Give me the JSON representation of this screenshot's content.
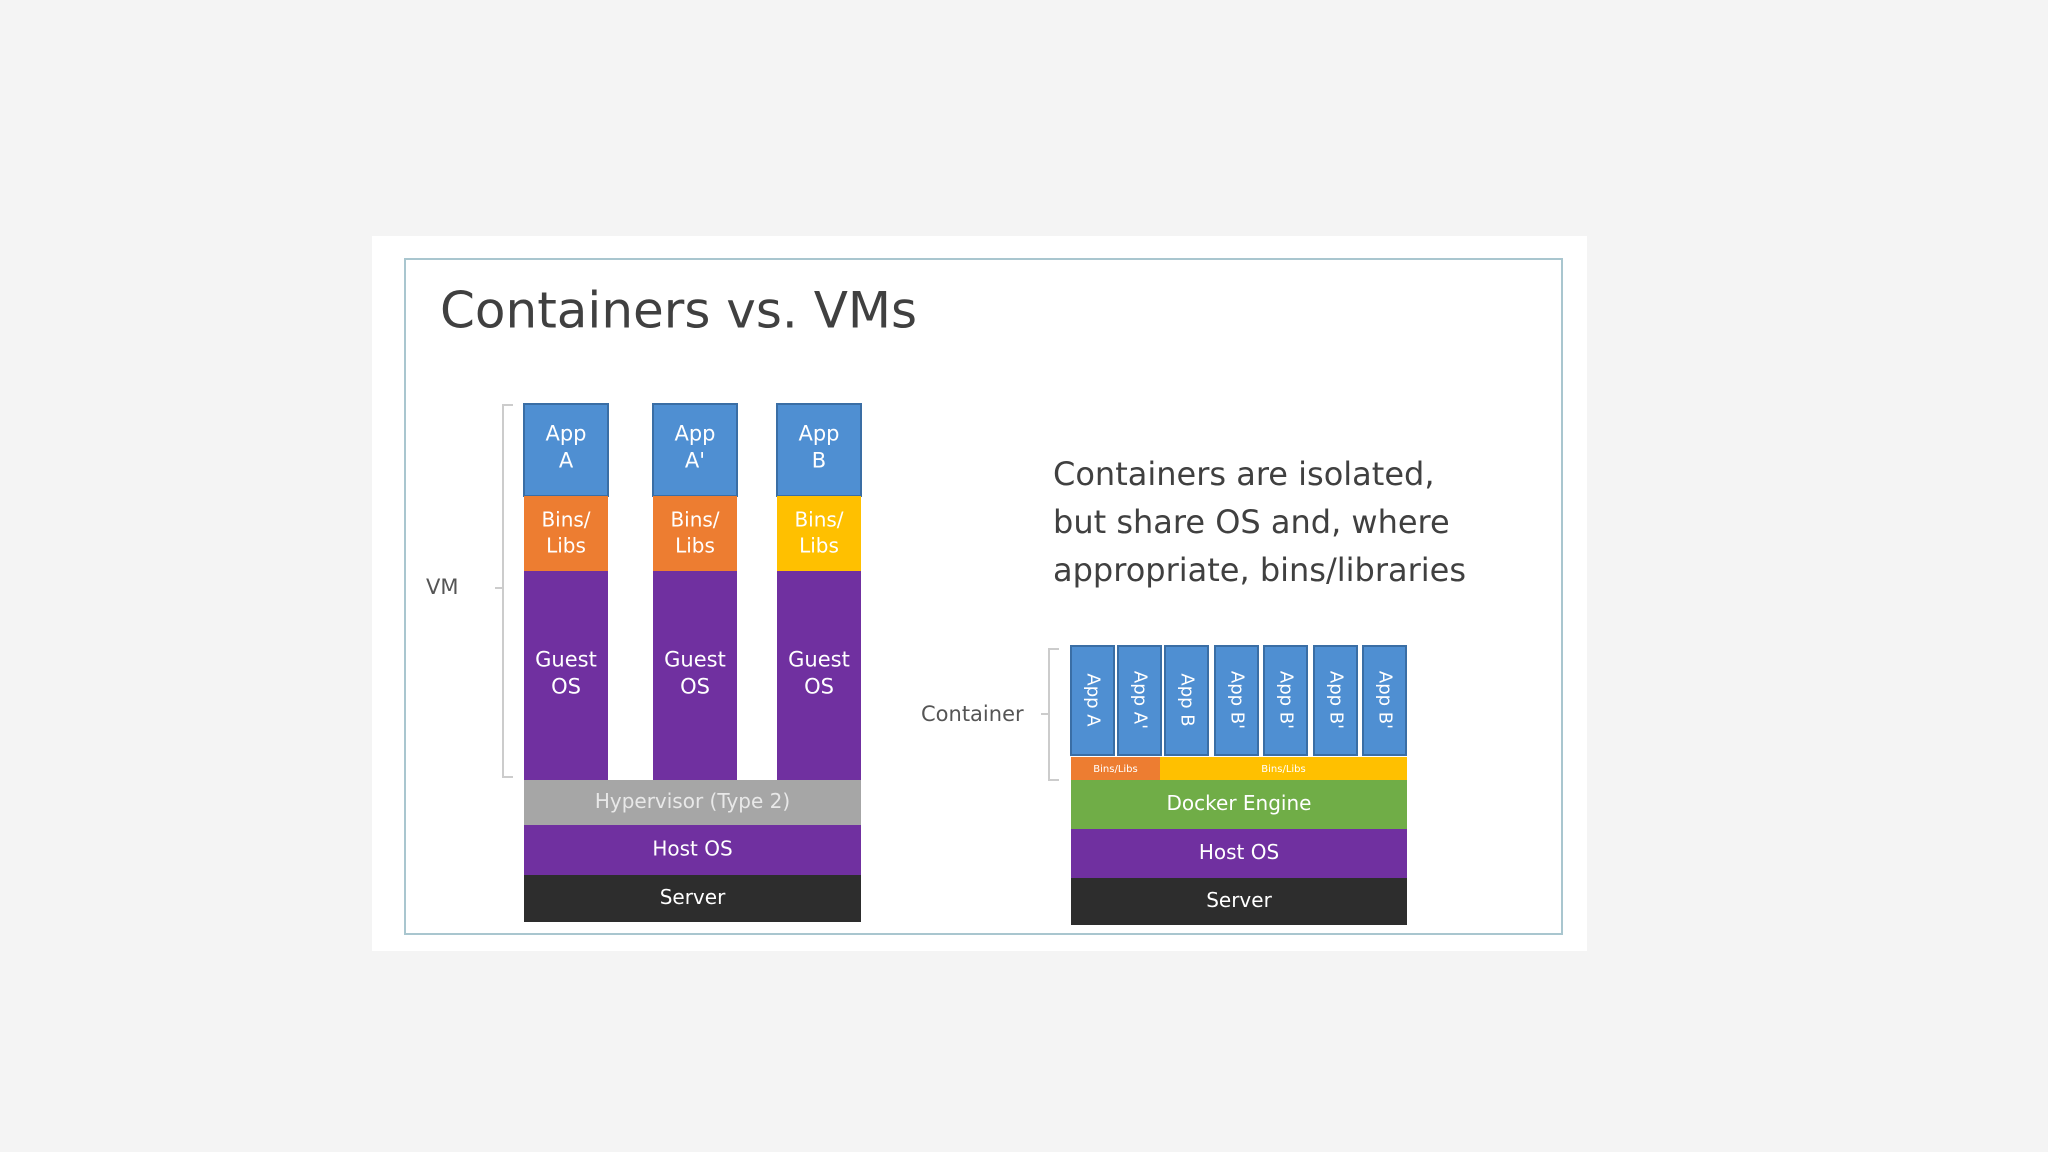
{
  "title": "Containers vs. VMs",
  "vm": {
    "label": "VM",
    "columns": [
      {
        "app": [
          "App",
          "A"
        ],
        "bins": [
          "Bins/",
          "Libs"
        ],
        "bins_color": "#ed7d31",
        "guest": [
          "Guest",
          "OS"
        ]
      },
      {
        "app": [
          "App",
          "A'"
        ],
        "bins": [
          "Bins/",
          "Libs"
        ],
        "bins_color": "#ed7d31",
        "guest": [
          "Guest",
          "OS"
        ]
      },
      {
        "app": [
          "App",
          "B"
        ],
        "bins": [
          "Bins/",
          "Libs"
        ],
        "bins_color": "#ffc000",
        "guest": [
          "Guest",
          "OS"
        ]
      }
    ],
    "hypervisor": "Hypervisor (Type 2)",
    "host_os": "Host OS",
    "server": "Server"
  },
  "containers": {
    "label": "Container",
    "apps": [
      "App A",
      "App A'",
      "App B",
      "App B'",
      "App B'",
      "App B'",
      "App B'"
    ],
    "bins": [
      {
        "text": "Bins/Libs",
        "color": "#ed7d31"
      },
      {
        "text": "Bins/Libs",
        "color": "#ffc000"
      }
    ],
    "engine": "Docker Engine",
    "host_os": "Host OS",
    "server": "Server"
  },
  "description": [
    "Containers are isolated,",
    "but share OS and, where",
    "appropriate, bins/libraries"
  ]
}
